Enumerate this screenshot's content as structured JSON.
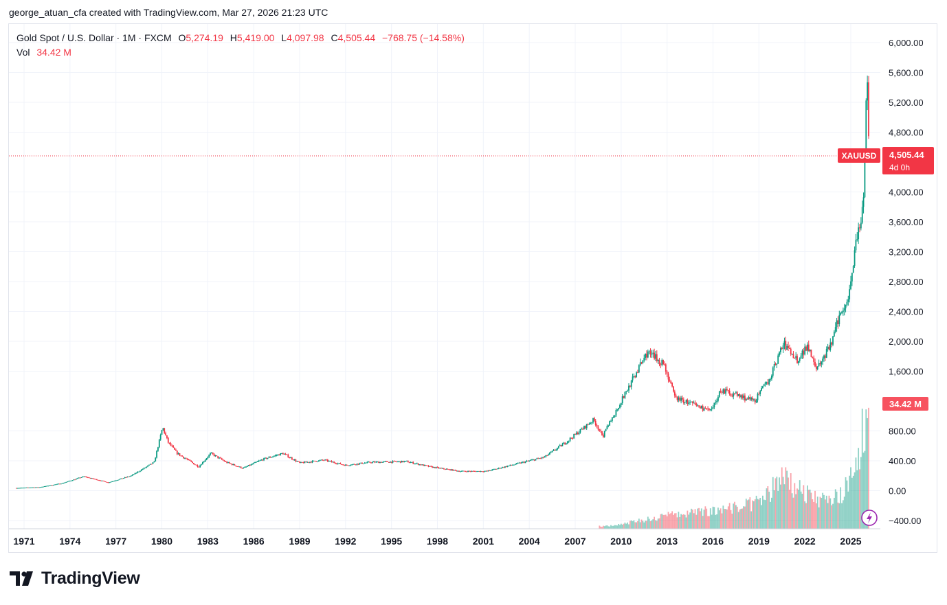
{
  "header": {
    "caption": "george_atuan_cfa created with TradingView.com, Mar 27, 2026 21:23 UTC"
  },
  "legend": {
    "symbol": "Gold Spot / U.S. Dollar · 1M · FXCM",
    "open_label": "O",
    "open": "5,274.19",
    "high_label": "H",
    "high": "5,419.00",
    "low_label": "L",
    "low": "4,097.98",
    "close_label": "C",
    "close": "4,505.44",
    "change": "−768.75 (−14.58%)",
    "vol_label": "Vol",
    "vol": "34.42 M"
  },
  "price_tag": {
    "symbol": "XAUUSD",
    "price": "4,505.44",
    "countdown": "4d 0h"
  },
  "volume_tag": "34.42 M",
  "brand": "TradingView",
  "colors": {
    "up": "#089981",
    "down": "#f23645",
    "grid": "#f0f3fa",
    "text": "#131722"
  },
  "chart_data": {
    "type": "candlestick",
    "title": "Gold Spot / U.S. Dollar",
    "interval": "1M",
    "y_ticks": [
      6000,
      5600,
      5200,
      4800,
      4000,
      3600,
      3200,
      2800,
      2400,
      2000,
      1600,
      800,
      400,
      0,
      -400
    ],
    "y_tick_labels": [
      "6,000.00",
      "5,600.00",
      "5,200.00",
      "4,800.00",
      "4,000.00",
      "3,600.00",
      "3,200.00",
      "2,800.00",
      "2,400.00",
      "2,000.00",
      "1,600.00",
      "800.00",
      "400.00",
      "0.00",
      "−400.00"
    ],
    "x_ticks": [
      "1971",
      "1974",
      "1977",
      "1980",
      "1983",
      "1986",
      "1989",
      "1992",
      "1995",
      "1998",
      "2001",
      "2004",
      "2007",
      "2010",
      "2013",
      "2016",
      "2019",
      "2022",
      "2025"
    ],
    "ylim": [
      -500,
      6200
    ],
    "last_price": 4505.44,
    "series": [
      {
        "name": "XAUUSD",
        "points": [
          {
            "t": 1970.5,
            "p": 36
          },
          {
            "t": 1972,
            "p": 46
          },
          {
            "t": 1973.5,
            "p": 100
          },
          {
            "t": 1974.9,
            "p": 190
          },
          {
            "t": 1976.5,
            "p": 110
          },
          {
            "t": 1978,
            "p": 200
          },
          {
            "t": 1979.5,
            "p": 380
          },
          {
            "t": 1980.05,
            "p": 850
          },
          {
            "t": 1980.4,
            "p": 650
          },
          {
            "t": 1981,
            "p": 500
          },
          {
            "t": 1982.4,
            "p": 320
          },
          {
            "t": 1983.2,
            "p": 500
          },
          {
            "t": 1984.2,
            "p": 380
          },
          {
            "t": 1985.3,
            "p": 300
          },
          {
            "t": 1986.6,
            "p": 420
          },
          {
            "t": 1987.9,
            "p": 500
          },
          {
            "t": 1989,
            "p": 370
          },
          {
            "t": 1990.6,
            "p": 410
          },
          {
            "t": 1992,
            "p": 340
          },
          {
            "t": 1993.6,
            "p": 380
          },
          {
            "t": 1996,
            "p": 390
          },
          {
            "t": 1997.5,
            "p": 320
          },
          {
            "t": 1999.5,
            "p": 260
          },
          {
            "t": 2001.2,
            "p": 260
          },
          {
            "t": 2003,
            "p": 350
          },
          {
            "t": 2005,
            "p": 450
          },
          {
            "t": 2006.4,
            "p": 650
          },
          {
            "t": 2008.2,
            "p": 950
          },
          {
            "t": 2008.8,
            "p": 730
          },
          {
            "t": 2010,
            "p": 1200
          },
          {
            "t": 2011.7,
            "p": 1850
          },
          {
            "t": 2012.8,
            "p": 1700
          },
          {
            "t": 2013.5,
            "p": 1250
          },
          {
            "t": 2015.9,
            "p": 1060
          },
          {
            "t": 2016.5,
            "p": 1350
          },
          {
            "t": 2018.7,
            "p": 1200
          },
          {
            "t": 2019.7,
            "p": 1500
          },
          {
            "t": 2020.6,
            "p": 1970
          },
          {
            "t": 2021.5,
            "p": 1750
          },
          {
            "t": 2022.2,
            "p": 1950
          },
          {
            "t": 2022.8,
            "p": 1630
          },
          {
            "t": 2023.7,
            "p": 1950
          },
          {
            "t": 2024.2,
            "p": 2300
          },
          {
            "t": 2024.9,
            "p": 2650
          },
          {
            "t": 2025.3,
            "p": 3300
          },
          {
            "t": 2025.7,
            "p": 3600
          },
          {
            "t": 2025.85,
            "p": 4000
          },
          {
            "t": 2026.0,
            "p": 5274
          },
          {
            "t": 2026.1,
            "p": 5419
          },
          {
            "t": 2026.2,
            "p": 4505
          }
        ]
      },
      {
        "name": "Vol",
        "points": [
          {
            "t": 2009,
            "v": 20
          },
          {
            "t": 2011,
            "v": 60
          },
          {
            "t": 2013,
            "v": 110
          },
          {
            "t": 2015,
            "v": 130
          },
          {
            "t": 2017,
            "v": 170
          },
          {
            "t": 2019,
            "v": 210
          },
          {
            "t": 2020.6,
            "v": 420
          },
          {
            "t": 2022,
            "v": 280
          },
          {
            "t": 2023.5,
            "v": 220
          },
          {
            "t": 2024.6,
            "v": 300
          },
          {
            "t": 2025.3,
            "v": 540
          },
          {
            "t": 2025.8,
            "v": 780
          },
          {
            "t": 2026.1,
            "v": 1000
          }
        ]
      }
    ]
  }
}
